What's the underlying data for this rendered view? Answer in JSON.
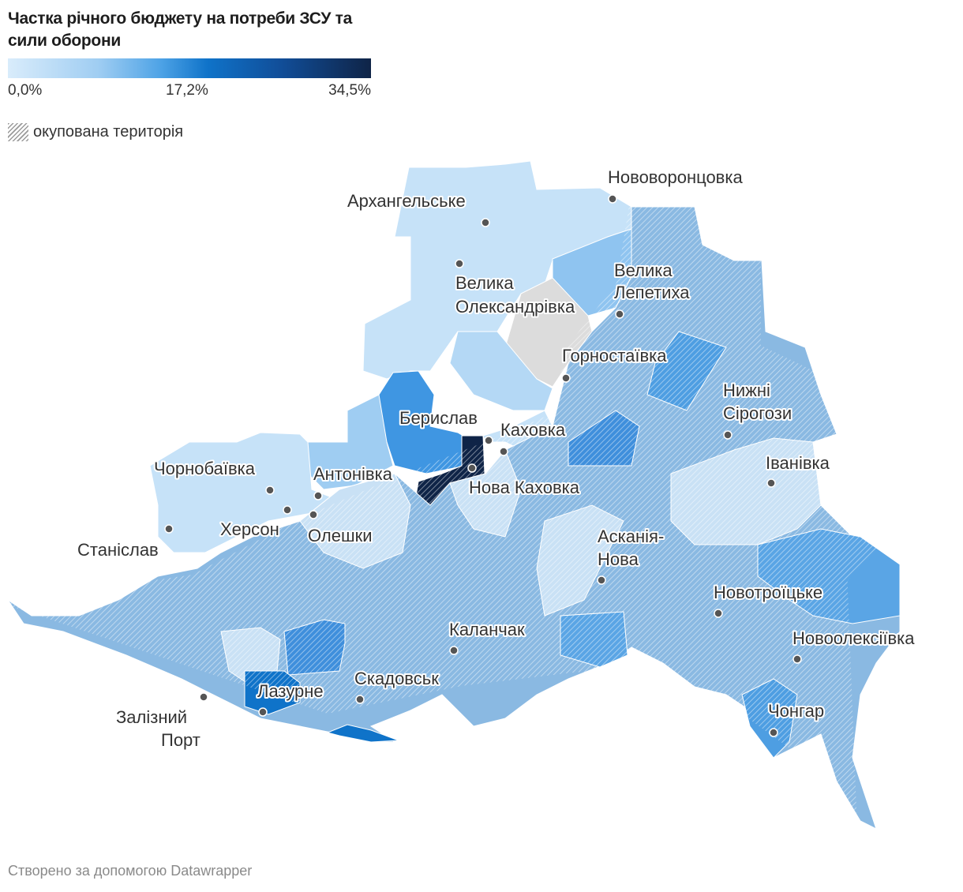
{
  "title": "Частка річного бюджету на потреби ЗСУ та сили оборони",
  "legend": {
    "min": "0,0%",
    "mid": "17,2%",
    "max": "34,5%",
    "colors": [
      "#d9ecfb",
      "#9fcdf2",
      "#4ea3e6",
      "#0f73c9",
      "#114e99",
      "#0f2447"
    ]
  },
  "occupied_label": "окупована територія",
  "cities": {
    "arkhanhelske": "Архангельське",
    "novovorontsovka": "Нововоронцовка",
    "velyka_oleksandrivka": [
      "Велика",
      "Олександрівка"
    ],
    "velyka_lepetykha": [
      "Велика",
      "Лепетиха"
    ],
    "hornostaivka": "Горностаївка",
    "nyzhni_sirohozy": [
      "Нижні",
      "Сірогози"
    ],
    "beryslav": "Берислав",
    "kakhovka": "Каховка",
    "nova_kakhovka": "Нова Каховка",
    "chornobaivka": "Чорнобаївка",
    "antonivka": "Антонівка",
    "kherson": "Херсон",
    "oleshky": "Олешки",
    "ivanivka": "Іванівка",
    "stanislav": "Станіслав",
    "askania_nova": [
      "Асканія-",
      "Нова"
    ],
    "novotroitske": "Новотроїцьке",
    "kalanchak": "Каланчак",
    "novooleksiivka": "Новоолексіївка",
    "skadovsk": "Скадовськ",
    "lazurne": "Лазурне",
    "chonhar": "Чонгар",
    "zaliznyi_port": [
      "Залізний",
      "Порт"
    ]
  },
  "credit": "Створено за допомогою Datawrapper"
}
